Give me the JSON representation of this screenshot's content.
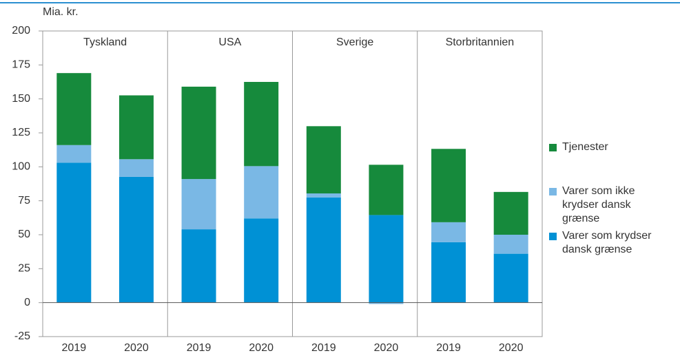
{
  "chart_data": {
    "type": "bar",
    "stacked": true,
    "y_label": "Mia. kr.",
    "groups": [
      "Tyskland",
      "USA",
      "Sverige",
      "Storbritannien"
    ],
    "categories": [
      "2019",
      "2020",
      "2019",
      "2020",
      "2019",
      "2020",
      "2019",
      "2020"
    ],
    "series": [
      {
        "name": "Tjenester",
        "color": "#168a3c",
        "values": [
          53,
          47,
          68,
          62,
          49.5,
          37,
          54,
          31.5
        ]
      },
      {
        "name": "Varer som ikke krydser dansk grænse",
        "color": "#7ab8e5",
        "values": [
          13,
          13,
          37,
          38.5,
          3,
          -1,
          14.7,
          14
        ]
      },
      {
        "name": "Varer som krydser dansk grænse",
        "color": "#0091d5",
        "values": [
          103,
          92.6,
          54,
          62,
          77.4,
          64.5,
          44.5,
          36
        ]
      }
    ],
    "ylim": [
      -25,
      200
    ],
    "yticks": [
      -25,
      0,
      25,
      50,
      75,
      100,
      125,
      150,
      175,
      200
    ]
  }
}
